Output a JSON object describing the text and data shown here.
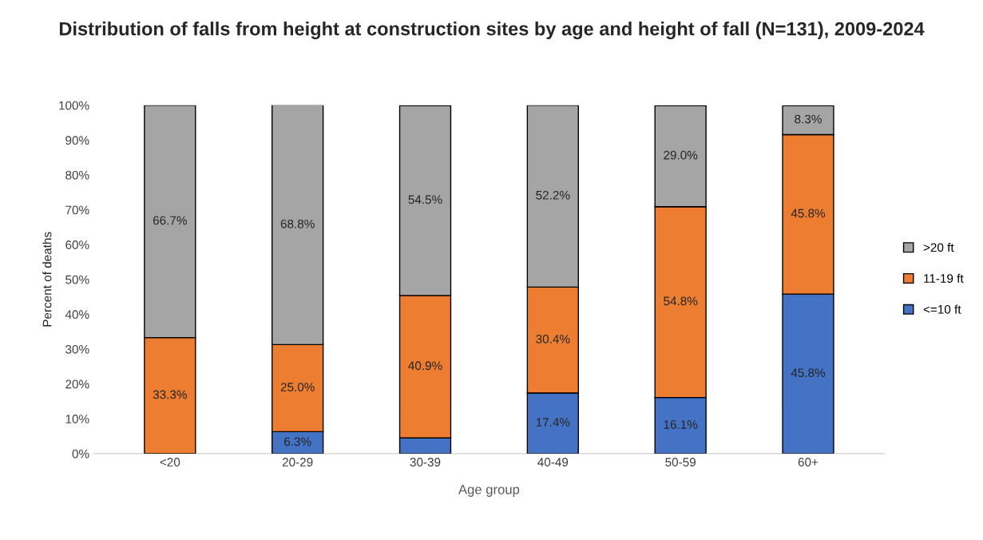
{
  "chart_data": {
    "type": "bar",
    "stacked": true,
    "title": "Distribution of falls from height at construction sites by age and height of fall (N=131), 2009-2024",
    "xlabel": "Age group",
    "ylabel": "Percent of deaths",
    "categories": [
      "<20",
      "20-29",
      "30-39",
      "40-49",
      "50-59",
      "60+"
    ],
    "series": [
      {
        "name": "<=10 ft",
        "color": "#4472c4",
        "values": [
          0,
          6.3,
          4.5,
          17.4,
          16.1,
          45.8
        ],
        "value_labels": [
          null,
          "6.3%",
          null,
          "17.4%",
          "16.1%",
          "45.8%"
        ]
      },
      {
        "name": "11-19 ft",
        "color": "#ed7d31",
        "values": [
          33.3,
          25.0,
          40.9,
          30.4,
          54.8,
          45.8
        ],
        "value_labels": [
          "33.3%",
          "25.0%",
          "40.9%",
          "30.4%",
          "54.8%",
          "45.8%"
        ]
      },
      {
        "name": ">20 ft",
        "color": "#a5a5a5",
        "values": [
          66.7,
          68.8,
          54.5,
          52.2,
          29.0,
          8.3
        ],
        "value_labels": [
          "66.7%",
          "68.8%",
          "54.5%",
          "52.2%",
          "29.0%",
          "8.3%"
        ]
      }
    ],
    "ylim": [
      0,
      100
    ],
    "yticks": [
      {
        "value": 0,
        "label": "0%"
      },
      {
        "value": 10,
        "label": "10%"
      },
      {
        "value": 20,
        "label": "20%"
      },
      {
        "value": 30,
        "label": "30%"
      },
      {
        "value": 40,
        "label": "40%"
      },
      {
        "value": 50,
        "label": "50%"
      },
      {
        "value": 60,
        "label": "60%"
      },
      {
        "value": 70,
        "label": "70%"
      },
      {
        "value": 80,
        "label": "80%"
      },
      {
        "value": 90,
        "label": "90%"
      },
      {
        "value": 100,
        "label": "100%"
      }
    ],
    "grid": false,
    "legend": "right"
  }
}
